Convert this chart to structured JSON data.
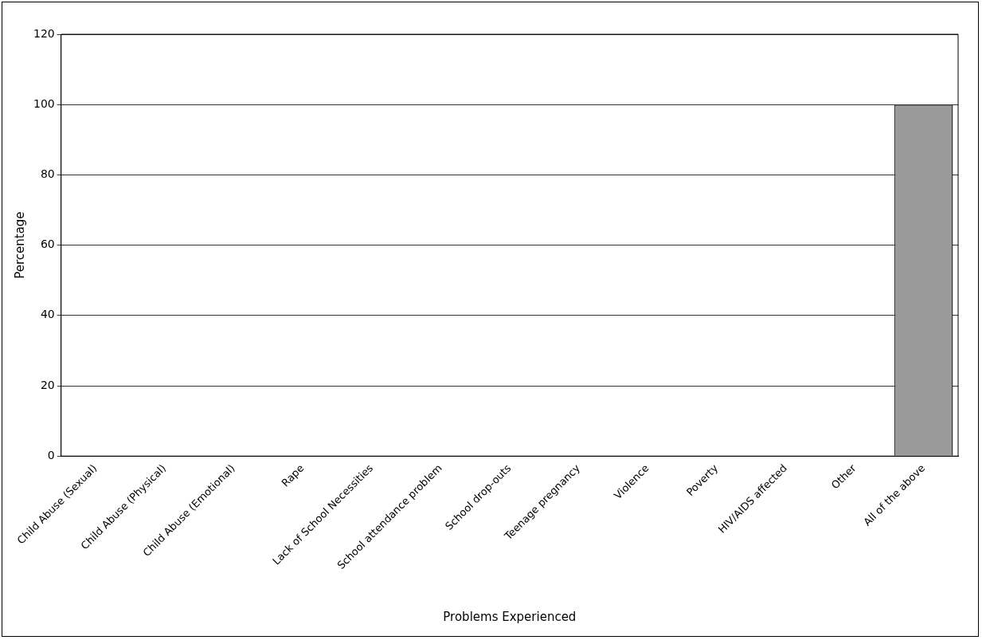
{
  "chart_data": {
    "type": "bar",
    "xlabel": "Problems Experienced",
    "ylabel": "Percentage",
    "categories": [
      "Child Abuse (Sexual)",
      "Child Abuse (Physical)",
      "Child Abuse (Emotional)",
      "Rape",
      "Lack of School Necessities",
      "School attendance problem",
      "School drop-outs",
      "Teenage pregnancy",
      "Violence",
      "Poverty",
      "HIV/AIDS affected",
      "Other",
      "All of the above"
    ],
    "values": [
      0,
      0,
      0,
      0,
      0,
      0,
      0,
      0,
      0,
      0,
      0,
      0,
      100
    ],
    "color": "#9a9a9a",
    "ylim": [
      0,
      120
    ],
    "yticks": [
      0,
      20,
      40,
      60,
      80,
      100,
      120
    ],
    "grid": "y",
    "legend": false
  }
}
